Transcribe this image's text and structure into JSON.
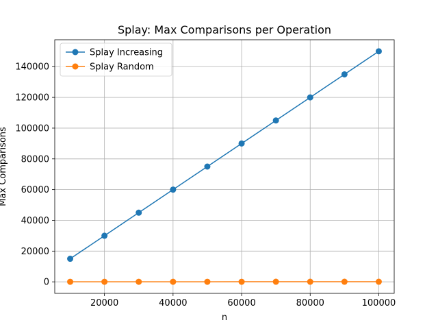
{
  "chart_data": {
    "type": "line",
    "title": "Splay: Max Comparisons per Operation",
    "xlabel": "n",
    "ylabel": "Max Comparisons",
    "xlim": [
      5500,
      104500
    ],
    "ylim": [
      -7500,
      157500
    ],
    "xticks": [
      20000,
      40000,
      60000,
      80000,
      100000
    ],
    "yticks": [
      0,
      20000,
      40000,
      60000,
      80000,
      100000,
      120000,
      140000
    ],
    "grid": true,
    "legend_position": "top-left",
    "x": [
      10000,
      20000,
      30000,
      40000,
      50000,
      60000,
      70000,
      80000,
      90000,
      100000
    ],
    "series": [
      {
        "name": "Splay Increasing",
        "color": "#1f77b4",
        "values": [
          15000,
          30000,
          45000,
          60000,
          75000,
          90000,
          105000,
          120000,
          135000,
          150000
        ]
      },
      {
        "name": "Splay Random",
        "color": "#ff7f0e",
        "values": [
          40,
          45,
          48,
          50,
          52,
          53,
          55,
          56,
          57,
          58
        ]
      }
    ]
  }
}
